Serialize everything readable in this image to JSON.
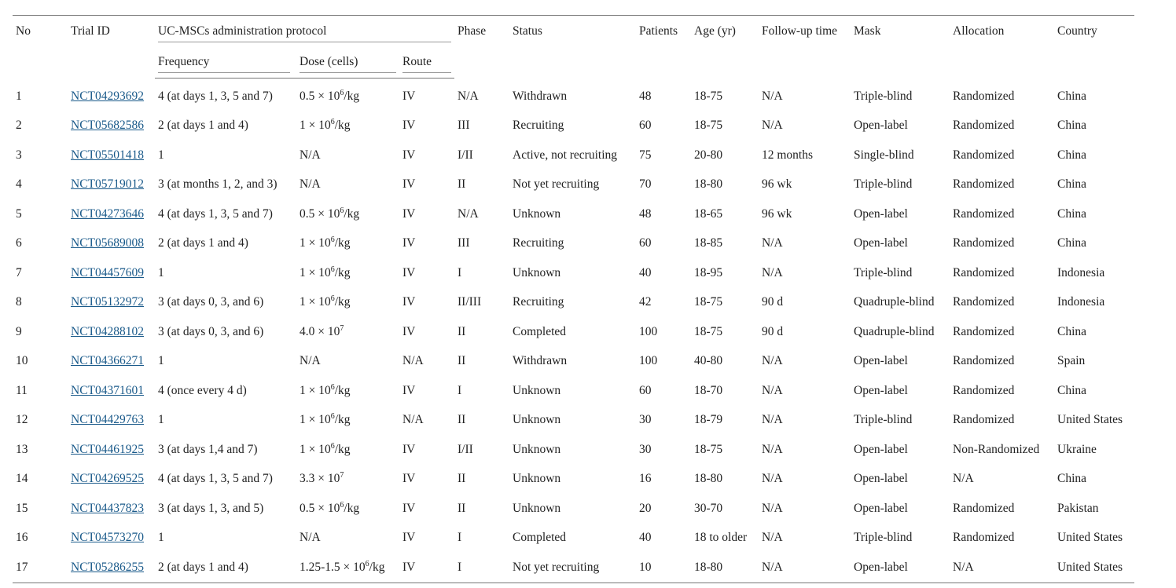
{
  "headers": {
    "no": "No",
    "trial_id": "Trial ID",
    "protocol": "UC-MSCs administration protocol",
    "frequency": "Frequency",
    "dose": "Dose (cells)",
    "route": "Route",
    "phase": "Phase",
    "status": "Status",
    "patients": "Patients",
    "age": "Age (yr)",
    "followup": "Follow-up time",
    "mask": "Mask",
    "allocation": "Allocation",
    "country": "Country"
  },
  "rows": [
    {
      "no": "1",
      "trial_id": "NCT04293692",
      "frequency": "4 (at days 1, 3, 5 and 7)",
      "dose": {
        "pre": "0.5 × 10",
        "sup": "6",
        "post": "/kg"
      },
      "route": "IV",
      "phase": "N/A",
      "status": "Withdrawn",
      "patients": "48",
      "age": "18-75",
      "followup": "N/A",
      "mask": "Triple-blind",
      "allocation": "Randomized",
      "country": "China"
    },
    {
      "no": "2",
      "trial_id": "NCT05682586",
      "frequency": "2 (at days 1 and 4)",
      "dose": {
        "pre": "1 × 10",
        "sup": "6",
        "post": "/kg"
      },
      "route": "IV",
      "phase": "III",
      "status": "Recruiting",
      "patients": "60",
      "age": "18-75",
      "followup": "N/A",
      "mask": "Open-label",
      "allocation": "Randomized",
      "country": "China"
    },
    {
      "no": "3",
      "trial_id": "NCT05501418",
      "frequency": "1",
      "dose": {
        "pre": "N/A"
      },
      "route": "IV",
      "phase": "I/II",
      "status": "Active, not recruiting",
      "patients": "75",
      "age": "20-80",
      "followup": "12 months",
      "mask": "Single-blind",
      "allocation": "Randomized",
      "country": "China"
    },
    {
      "no": "4",
      "trial_id": "NCT05719012",
      "frequency": "3 (at months 1, 2, and 3)",
      "dose": {
        "pre": "N/A"
      },
      "route": "IV",
      "phase": "II",
      "status": "Not yet recruiting",
      "patients": "70",
      "age": "18-80",
      "followup": "96 wk",
      "mask": "Triple-blind",
      "allocation": "Randomized",
      "country": "China"
    },
    {
      "no": "5",
      "trial_id": "NCT04273646",
      "frequency": "4 (at days 1, 3, 5 and 7)",
      "dose": {
        "pre": "0.5 × 10",
        "sup": "6",
        "post": "/kg"
      },
      "route": "IV",
      "phase": "N/A",
      "status": "Unknown",
      "patients": "48",
      "age": "18-65",
      "followup": "96 wk",
      "mask": "Open-label",
      "allocation": "Randomized",
      "country": "China"
    },
    {
      "no": "6",
      "trial_id": "NCT05689008",
      "frequency": "2 (at days 1 and 4)",
      "dose": {
        "pre": "1 × 10",
        "sup": "6",
        "post": "/kg"
      },
      "route": "IV",
      "phase": "III",
      "status": "Recruiting",
      "patients": "60",
      "age": "18-85",
      "followup": "N/A",
      "mask": "Open-label",
      "allocation": "Randomized",
      "country": "China"
    },
    {
      "no": "7",
      "trial_id": "NCT04457609",
      "frequency": "1",
      "dose": {
        "pre": "1 × 10",
        "sup": "6",
        "post": "/kg"
      },
      "route": "IV",
      "phase": "I",
      "status": "Unknown",
      "patients": "40",
      "age": "18-95",
      "followup": "N/A",
      "mask": "Triple-blind",
      "allocation": "Randomized",
      "country": "Indonesia"
    },
    {
      "no": "8",
      "trial_id": "NCT05132972",
      "frequency": "3 (at days 0, 3, and 6)",
      "dose": {
        "pre": "1 × 10",
        "sup": "6",
        "post": "/kg"
      },
      "route": "IV",
      "phase": "II/III",
      "status": "Recruiting",
      "patients": "42",
      "age": "18-75",
      "followup": "90 d",
      "mask": "Quadruple-blind",
      "allocation": "Randomized",
      "country": "Indonesia"
    },
    {
      "no": "9",
      "trial_id": "NCT04288102",
      "frequency": "3 (at days 0, 3, and 6)",
      "dose": {
        "pre": "4.0 × 10",
        "sup": "7",
        "post": ""
      },
      "route": "IV",
      "phase": "II",
      "status": "Completed",
      "patients": "100",
      "age": "18-75",
      "followup": "90 d",
      "mask": "Quadruple-blind",
      "allocation": "Randomized",
      "country": "China"
    },
    {
      "no": "10",
      "trial_id": "NCT04366271",
      "frequency": "1",
      "dose": {
        "pre": "N/A"
      },
      "route": "N/A",
      "phase": "II",
      "status": "Withdrawn",
      "patients": "100",
      "age": "40-80",
      "followup": "N/A",
      "mask": "Open-label",
      "allocation": "Randomized",
      "country": "Spain"
    },
    {
      "no": "11",
      "trial_id": "NCT04371601",
      "frequency": "4 (once every 4 d)",
      "dose": {
        "pre": "1 × 10",
        "sup": "6",
        "post": "/kg"
      },
      "route": "IV",
      "phase": "I",
      "status": "Unknown",
      "patients": "60",
      "age": "18-70",
      "followup": "N/A",
      "mask": "Open-label",
      "allocation": "Randomized",
      "country": "China"
    },
    {
      "no": "12",
      "trial_id": "NCT04429763",
      "frequency": "1",
      "dose": {
        "pre": "1 × 10",
        "sup": "6",
        "post": "/kg"
      },
      "route": "N/A",
      "phase": "II",
      "status": "Unknown",
      "patients": "30",
      "age": "18-79",
      "followup": "N/A",
      "mask": "Triple-blind",
      "allocation": "Randomized",
      "country": "United States"
    },
    {
      "no": "13",
      "trial_id": "NCT04461925",
      "frequency": "3 (at days 1,4 and 7)",
      "dose": {
        "pre": "1 × 10",
        "sup": "6",
        "post": "/kg"
      },
      "route": "IV",
      "phase": "I/II",
      "status": "Unknown",
      "patients": "30",
      "age": "18-75",
      "followup": "N/A",
      "mask": "Open-label",
      "allocation": "Non-Randomized",
      "country": "Ukraine"
    },
    {
      "no": "14",
      "trial_id": "NCT04269525",
      "frequency": "4 (at days 1, 3, 5 and 7)",
      "dose": {
        "pre": "3.3 × 10",
        "sup": "7",
        "post": ""
      },
      "route": "IV",
      "phase": "II",
      "status": "Unknown",
      "patients": "16",
      "age": "18-80",
      "followup": "N/A",
      "mask": "Open-label",
      "allocation": "N/A",
      "country": "China"
    },
    {
      "no": "15",
      "trial_id": "NCT04437823",
      "frequency": "3 (at days 1, 3, and 5)",
      "dose": {
        "pre": "0.5 × 10",
        "sup": "6",
        "post": "/kg"
      },
      "route": "IV",
      "phase": "II",
      "status": "Unknown",
      "patients": "20",
      "age": "30-70",
      "followup": "N/A",
      "mask": "Open-label",
      "allocation": "Randomized",
      "country": "Pakistan"
    },
    {
      "no": "16",
      "trial_id": "NCT04573270",
      "frequency": "1",
      "dose": {
        "pre": "N/A"
      },
      "route": "IV",
      "phase": "I",
      "status": "Completed",
      "patients": "40",
      "age": "18 to older",
      "followup": "N/A",
      "mask": "Triple-blind",
      "allocation": "Randomized",
      "country": "United States"
    },
    {
      "no": "17",
      "trial_id": "NCT05286255",
      "frequency": "2 (at days 1 and 4)",
      "dose": {
        "pre": "1.25-1.5 × 10",
        "sup": "6",
        "post": "/kg"
      },
      "route": "IV",
      "phase": "I",
      "status": "Not yet recruiting",
      "patients": "10",
      "age": "18-80",
      "followup": "N/A",
      "mask": "Open-label",
      "allocation": "N/A",
      "country": "United States"
    }
  ]
}
